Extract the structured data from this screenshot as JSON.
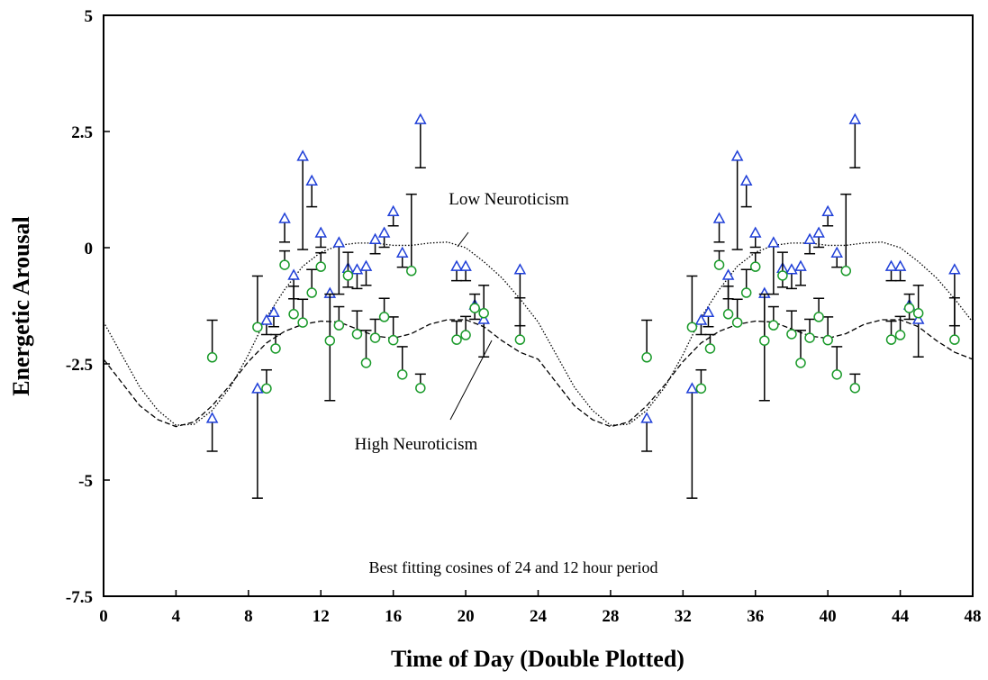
{
  "chart_data": {
    "type": "scatter",
    "x_label": "Time of Day (Double Plotted)",
    "y_label": "Energetic Arousal",
    "annotation": "Best fitting cosines of 24 and 12 hour period",
    "xlim": [
      0,
      48
    ],
    "xticks": [
      0,
      4,
      8,
      12,
      16,
      20,
      24,
      28,
      32,
      36,
      40,
      44,
      48
    ],
    "ylim": [
      -7.5,
      5
    ],
    "yticks": [
      -7.5,
      -5,
      -2.5,
      0,
      2.5,
      5
    ],
    "fit_x": [
      0,
      1,
      2,
      3,
      4,
      5,
      6,
      7,
      8,
      9,
      10,
      11,
      12,
      13,
      14,
      15,
      16,
      17,
      18,
      19,
      20,
      21,
      22,
      23,
      24,
      25,
      26,
      27,
      28,
      29,
      30,
      31,
      32,
      33,
      34,
      35,
      36,
      37,
      38,
      39,
      40,
      41,
      42,
      43,
      44,
      45,
      46,
      47,
      48
    ],
    "series": [
      {
        "name": "Low Neuroticism",
        "color": "#1f3fd8",
        "marker": "triangle",
        "line_style": "dotted",
        "error_direction": "down",
        "x": [
          6,
          8.5,
          9,
          9.4,
          10,
          10.5,
          11,
          11.5,
          12,
          12.5,
          13,
          13.5,
          14,
          14.5,
          15,
          15.5,
          16,
          16.5,
          17.5,
          19.5,
          20,
          20.5,
          21,
          23,
          30,
          32.5,
          33,
          33.4,
          34,
          34.5,
          35,
          35.5,
          36,
          36.5,
          37,
          37.5,
          38,
          38.5,
          39,
          39.5,
          40,
          40.5,
          41.5,
          43.5,
          44,
          44.5,
          45,
          47
        ],
        "values": [
          -3.68,
          -3.04,
          -1.57,
          -1.4,
          0.62,
          -0.6,
          1.96,
          1.43,
          0.31,
          -0.99,
          0.1,
          -0.45,
          -0.48,
          -0.41,
          0.17,
          0.31,
          0.77,
          -0.12,
          2.75,
          -0.41,
          -0.41,
          -1.24,
          -1.55,
          -0.48,
          -3.68,
          -3.04,
          -1.57,
          -1.4,
          0.62,
          -0.6,
          1.96,
          1.43,
          0.31,
          -0.99,
          0.1,
          -0.45,
          -0.48,
          -0.41,
          0.17,
          0.31,
          0.77,
          -0.12,
          2.75,
          -0.41,
          -0.41,
          -1.24,
          -1.55,
          -0.48
        ],
        "errors": [
          0.7,
          2.35,
          0.3,
          0.3,
          0.5,
          0.5,
          2.0,
          0.55,
          0.3,
          2.3,
          1.1,
          0.4,
          0.4,
          0.4,
          0.3,
          0.3,
          0.3,
          0.3,
          1.03,
          0.3,
          0.3,
          0.3,
          0.8,
          1.2,
          0.7,
          2.35,
          0.3,
          0.3,
          0.5,
          0.5,
          2.0,
          0.55,
          0.3,
          2.3,
          1.1,
          0.4,
          0.4,
          0.4,
          0.3,
          0.3,
          0.3,
          0.3,
          1.03,
          0.3,
          0.3,
          0.3,
          0.8,
          1.2
        ],
        "fit": [
          -1.6,
          -2.3,
          -3.0,
          -3.5,
          -3.82,
          -3.8,
          -3.5,
          -3.0,
          -2.3,
          -1.5,
          -0.9,
          -0.4,
          -0.1,
          0.05,
          0.1,
          0.1,
          0.05,
          0.05,
          0.1,
          0.12,
          0.0,
          -0.3,
          -0.65,
          -1.1,
          -1.6,
          -2.3,
          -3.0,
          -3.5,
          -3.82,
          -3.8,
          -3.5,
          -3.0,
          -2.3,
          -1.5,
          -0.9,
          -0.4,
          -0.1,
          0.05,
          0.1,
          0.1,
          0.05,
          0.05,
          0.1,
          0.12,
          0.0,
          -0.3,
          -0.65,
          -1.1,
          -1.6
        ]
      },
      {
        "name": "High Neuroticism",
        "color": "#1a9a2a",
        "marker": "circle",
        "line_style": "dashed",
        "error_direction": "up",
        "x": [
          6,
          8.5,
          9,
          9.5,
          10,
          10.5,
          11,
          11.5,
          12,
          12.5,
          13,
          13.5,
          14,
          14.5,
          15,
          15.5,
          16,
          16.5,
          17,
          17.5,
          19.5,
          20,
          20.5,
          21,
          23,
          30,
          32.5,
          33,
          33.5,
          34,
          34.5,
          35,
          35.5,
          36,
          36.5,
          37,
          37.5,
          38,
          38.5,
          39,
          39.5,
          40,
          40.5,
          41,
          41.5,
          43.5,
          44,
          44.5,
          45,
          47
        ],
        "values": [
          -2.36,
          -1.71,
          -3.03,
          -2.17,
          -0.37,
          -1.43,
          -1.61,
          -0.97,
          -0.41,
          -2.0,
          -1.67,
          -0.6,
          -1.86,
          -2.48,
          -1.94,
          -1.49,
          -1.99,
          -2.73,
          -0.5,
          -3.02,
          -1.98,
          -1.88,
          -1.3,
          -1.41,
          -1.98,
          -2.36,
          -1.71,
          -3.03,
          -2.17,
          -0.37,
          -1.43,
          -1.61,
          -0.97,
          -0.41,
          -2.0,
          -1.67,
          -0.6,
          -1.86,
          -2.48,
          -1.94,
          -1.49,
          -1.99,
          -2.73,
          -0.5,
          -3.02,
          -1.98,
          -1.88,
          -1.3,
          -1.41,
          -1.98
        ],
        "errors": [
          0.8,
          1.1,
          0.4,
          0.3,
          0.3,
          0.6,
          0.5,
          0.5,
          0.3,
          1.0,
          0.4,
          0.5,
          0.5,
          0.7,
          0.4,
          0.4,
          0.5,
          0.6,
          1.65,
          0.3,
          0.4,
          0.4,
          0.3,
          0.6,
          0.9,
          0.8,
          1.1,
          0.4,
          0.3,
          0.3,
          0.6,
          0.5,
          0.5,
          0.3,
          1.0,
          0.4,
          0.5,
          0.5,
          0.7,
          0.4,
          0.4,
          0.5,
          0.6,
          1.65,
          0.3,
          0.4,
          0.4,
          0.3,
          0.6,
          0.9
        ],
        "fit": [
          -2.4,
          -2.9,
          -3.4,
          -3.7,
          -3.85,
          -3.75,
          -3.4,
          -2.95,
          -2.45,
          -2.05,
          -1.8,
          -1.65,
          -1.58,
          -1.6,
          -1.75,
          -1.9,
          -1.95,
          -1.85,
          -1.65,
          -1.55,
          -1.55,
          -1.7,
          -2.0,
          -2.25,
          -2.4,
          -2.9,
          -3.4,
          -3.7,
          -3.85,
          -3.75,
          -3.4,
          -2.95,
          -2.45,
          -2.05,
          -1.8,
          -1.65,
          -1.58,
          -1.6,
          -1.75,
          -1.9,
          -1.95,
          -1.85,
          -1.65,
          -1.55,
          -1.55,
          -1.7,
          -2.0,
          -2.25,
          -2.4
        ]
      }
    ]
  }
}
